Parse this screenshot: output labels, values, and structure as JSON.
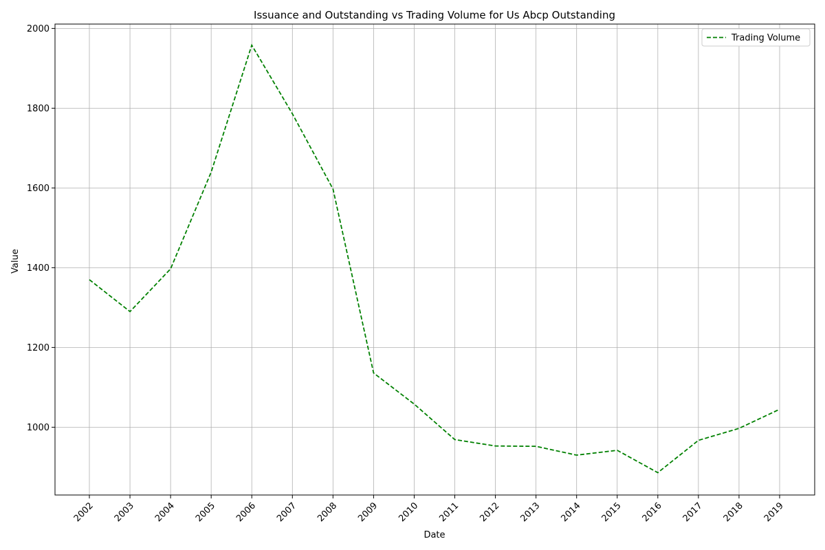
{
  "chart_data": {
    "type": "line",
    "title": "Issuance and Outstanding vs Trading Volume for Us Abcp Outstanding",
    "xlabel": "Date",
    "ylabel": "Value",
    "x": [
      "2002",
      "2003",
      "2004",
      "2005",
      "2006",
      "2007",
      "2008",
      "2009",
      "2010",
      "2011",
      "2012",
      "2013",
      "2014",
      "2015",
      "2016",
      "2017",
      "2018",
      "2019"
    ],
    "y_ticks": [
      1000,
      1200,
      1400,
      1600,
      1800,
      2000
    ],
    "ylim": [
      830,
      2011
    ],
    "grid": true,
    "legend_position": "top-right",
    "series": [
      {
        "name": "Trading Volume",
        "color": "#008000",
        "line_style": "dashed",
        "values": [
          1370,
          1290,
          1397,
          1640,
          1958,
          1786,
          1597,
          1136,
          1058,
          969,
          953,
          952,
          930,
          942,
          886,
          967,
          997,
          1045
        ]
      }
    ]
  }
}
